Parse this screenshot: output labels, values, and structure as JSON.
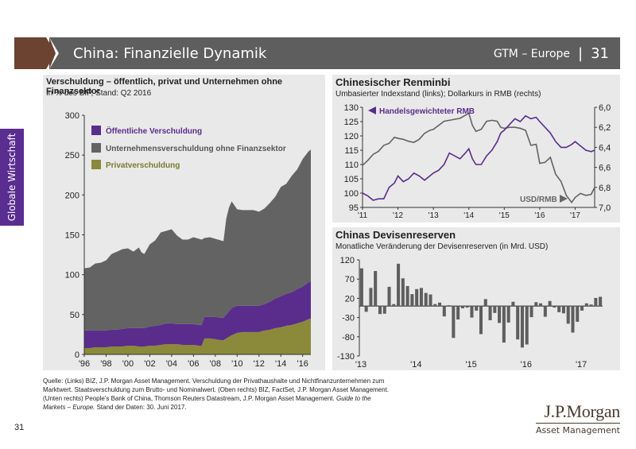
{
  "header": {
    "title": "China: Finanzielle Dynamik",
    "series": "GTM – Europe",
    "separator": "|",
    "page": "31"
  },
  "side_tab": {
    "label": "Globale Wirtschaft"
  },
  "source": {
    "text_1": "Quelle: (Links) BIZ, J.P. Morgan Asset Management. Verschuldung der Privathaushalte und Nichtfinanzunternehmen zum Marktwert. Staatsverschuldung zum Brutto- und Nominalwert. (Oben rechts) BIZ, FactSet, J.P. Morgan Asset Management. (Unten rechts) People's Bank of China, Thomson Reuters Datastream, J.P. Morgan Asset Management. ",
    "italic": "Guide to the Markets – Europe.",
    "text_2": " Stand der Daten: 30. Juni 2017."
  },
  "page_number": "31",
  "logo": {
    "name": "J.P.Morgan",
    "sub": "Asset Management"
  },
  "colors": {
    "public": "#5a2d8c",
    "corporate": "#636363",
    "private": "#8a8a3a",
    "rmb": "#5a2d8c",
    "usd": "#636363",
    "bars": "#5e5e5e"
  },
  "chart_data": [
    {
      "type": "area",
      "title": "Verschuldung – öffentlich, privat und Unternehmen ohne Finanzsektor",
      "subtitle": "In % des BIP, Stand: Q2 2016",
      "stacked": true,
      "ylim": [
        0,
        300
      ],
      "yticks": [
        0,
        50,
        100,
        150,
        200,
        250,
        300
      ],
      "xticks": [
        "'96",
        "'98",
        "'00",
        "'02",
        "'04",
        "'06",
        "'08",
        "'10",
        "'12",
        "'14",
        "'16"
      ],
      "xrange": [
        1996,
        2016.75
      ],
      "legend": [
        "Öffentliche Verschuldung",
        "Unternehmensverschuldung ohne Finanzsektor",
        "Privatverschuldung"
      ],
      "legend_position": "top-left",
      "x": [
        1996,
        1996.5,
        1997,
        1997.5,
        1998,
        1998.5,
        1999,
        1999.5,
        2000,
        2000.5,
        2001,
        2001.25,
        2001.5,
        2002,
        2002.5,
        2003,
        2003.5,
        2004,
        2004.5,
        2005,
        2005.5,
        2006,
        2006.5,
        2006.75,
        2007,
        2007.5,
        2008,
        2008.5,
        2008.75,
        2009,
        2009.25,
        2009.5,
        2010,
        2010.5,
        2011,
        2011.5,
        2012,
        2012.5,
        2013,
        2013.5,
        2014,
        2014.5,
        2015,
        2015.5,
        2016,
        2016.5,
        2016.75
      ],
      "series": [
        {
          "name": "Privatverschuldung",
          "values": [
            8,
            8,
            9,
            9,
            9,
            10,
            10,
            10,
            11,
            11,
            10,
            10,
            10,
            11,
            11,
            12,
            13,
            13,
            13,
            12,
            12,
            12,
            11,
            11,
            20,
            20,
            19,
            18,
            18,
            20,
            22,
            24,
            27,
            28,
            28,
            28,
            28,
            30,
            31,
            33,
            34,
            36,
            37,
            39,
            41,
            44,
            45
          ]
        },
        {
          "name": "Öffentliche Verschuldung",
          "values": [
            22,
            22,
            21,
            21,
            21,
            21,
            21,
            22,
            22,
            22,
            23,
            23,
            23,
            24,
            25,
            25,
            26,
            26,
            25,
            26,
            26,
            26,
            26,
            26,
            27,
            27,
            28,
            28,
            28,
            30,
            32,
            34,
            34,
            33,
            33,
            33,
            33,
            33,
            35,
            37,
            39,
            40,
            41,
            43,
            44,
            46,
            47
          ]
        },
        {
          "name": "Unternehmensverschuldung ohne Finanzsektor",
          "values": [
            78,
            79,
            84,
            85,
            88,
            95,
            98,
            100,
            100,
            96,
            101,
            95,
            93,
            103,
            107,
            116,
            116,
            118,
            111,
            106,
            106,
            109,
            108,
            107,
            99,
            100,
            98,
            97,
            96,
            120,
            130,
            134,
            121,
            120,
            120,
            120,
            118,
            120,
            124,
            128,
            137,
            138,
            146,
            150,
            160,
            164,
            165
          ]
        }
      ]
    },
    {
      "type": "line",
      "title": "Chinesischer Renminbi",
      "subtitle": "Umbasierter Indexstand (links); Dollarkurs in RMB (rechts)",
      "ylim_left": [
        95,
        130
      ],
      "yticks_left": [
        95,
        100,
        105,
        110,
        115,
        120,
        125,
        130
      ],
      "ylim_right": [
        6.0,
        7.0
      ],
      "yticks_right": [
        "6,0",
        "6,2",
        "6,4",
        "6,6",
        "6,8",
        "7,0"
      ],
      "right_axis_inverted": true,
      "xticks": [
        "'11",
        "'12",
        "'13",
        "'14",
        "'15",
        "'16",
        "'17"
      ],
      "xrange": [
        2011,
        2017.55
      ],
      "annotations": [
        {
          "text": "Handelsgewichteter RMB",
          "axis": "left"
        },
        {
          "text": "USD/RMB",
          "axis": "right"
        }
      ],
      "x": [
        2011,
        2011.15,
        2011.3,
        2011.45,
        2011.6,
        2011.75,
        2011.9,
        2012,
        2012.15,
        2012.3,
        2012.45,
        2012.6,
        2012.75,
        2012.9,
        2013,
        2013.15,
        2013.3,
        2013.45,
        2013.6,
        2013.75,
        2013.9,
        2014,
        2014.1,
        2014.2,
        2014.35,
        2014.5,
        2014.65,
        2014.8,
        2014.9,
        2015,
        2015.15,
        2015.3,
        2015.45,
        2015.6,
        2015.75,
        2015.9,
        2016,
        2016.15,
        2016.3,
        2016.45,
        2016.6,
        2016.75,
        2016.9,
        2017,
        2017.15,
        2017.3,
        2017.45,
        2017.55
      ],
      "series": [
        {
          "name": "Handelsgewichteter RMB",
          "axis": "left",
          "values": [
            100,
            99,
            97.5,
            98,
            98,
            102,
            103.5,
            106,
            104,
            105,
            107,
            106,
            104.5,
            106,
            107,
            108,
            110,
            114,
            113,
            112,
            114,
            115.5,
            112,
            110,
            110,
            113,
            115,
            118,
            121,
            122,
            124,
            126,
            125,
            127,
            126,
            126.5,
            125,
            123,
            121,
            118,
            116,
            116,
            117,
            118,
            116.5,
            115,
            114.5,
            115
          ]
        },
        {
          "name": "USD/RMB",
          "axis": "right",
          "values": [
            6.58,
            6.53,
            6.47,
            6.44,
            6.38,
            6.36,
            6.3,
            6.31,
            6.32,
            6.34,
            6.35,
            6.32,
            6.26,
            6.23,
            6.22,
            6.18,
            6.14,
            6.13,
            6.12,
            6.11,
            6.08,
            6.06,
            6.18,
            6.24,
            6.22,
            6.14,
            6.13,
            6.14,
            6.2,
            6.21,
            6.2,
            6.2,
            6.21,
            6.23,
            6.38,
            6.37,
            6.56,
            6.55,
            6.5,
            6.67,
            6.74,
            6.88,
            6.95,
            6.9,
            6.86,
            6.88,
            6.87,
            6.8
          ]
        }
      ]
    },
    {
      "type": "bar",
      "title": "Chinas Devisenreserven",
      "subtitle": "Monatliche Veränderung der Devisenreserven (in Mrd. USD)",
      "ylim": [
        -130,
        120
      ],
      "yticks": [
        -130,
        -80,
        -30,
        20,
        70,
        120
      ],
      "xticks": [
        "'13",
        "'14",
        "'15",
        "'16",
        "'17"
      ],
      "categories": [
        "2013-01",
        "2013-02",
        "2013-03",
        "2013-04",
        "2013-05",
        "2013-06",
        "2013-07",
        "2013-08",
        "2013-09",
        "2013-10",
        "2013-11",
        "2013-12",
        "2014-01",
        "2014-02",
        "2014-03",
        "2014-04",
        "2014-05",
        "2014-06",
        "2014-07",
        "2014-08",
        "2014-09",
        "2014-10",
        "2014-11",
        "2014-12",
        "2015-01",
        "2015-02",
        "2015-03",
        "2015-04",
        "2015-05",
        "2015-06",
        "2015-07",
        "2015-08",
        "2015-09",
        "2015-10",
        "2015-11",
        "2015-12",
        "2016-01",
        "2016-02",
        "2016-03",
        "2016-04",
        "2016-05",
        "2016-06",
        "2016-07",
        "2016-08",
        "2016-09",
        "2016-10",
        "2016-11",
        "2016-12",
        "2017-01",
        "2017-02",
        "2017-03",
        "2017-04",
        "2017-05"
      ],
      "values": [
        98,
        -15,
        47,
        91,
        -21,
        -20,
        50,
        5,
        110,
        72,
        52,
        31,
        44,
        47,
        34,
        30,
        5,
        9,
        -27,
        2,
        -83,
        -35,
        -6,
        -4,
        -30,
        -12,
        -73,
        18,
        -37,
        -18,
        -44,
        -95,
        -43,
        11,
        -87,
        -108,
        -100,
        -29,
        10,
        7,
        -28,
        13,
        -4,
        -16,
        -19,
        -46,
        -69,
        -41,
        -12,
        7,
        4,
        21,
        24
      ]
    }
  ]
}
